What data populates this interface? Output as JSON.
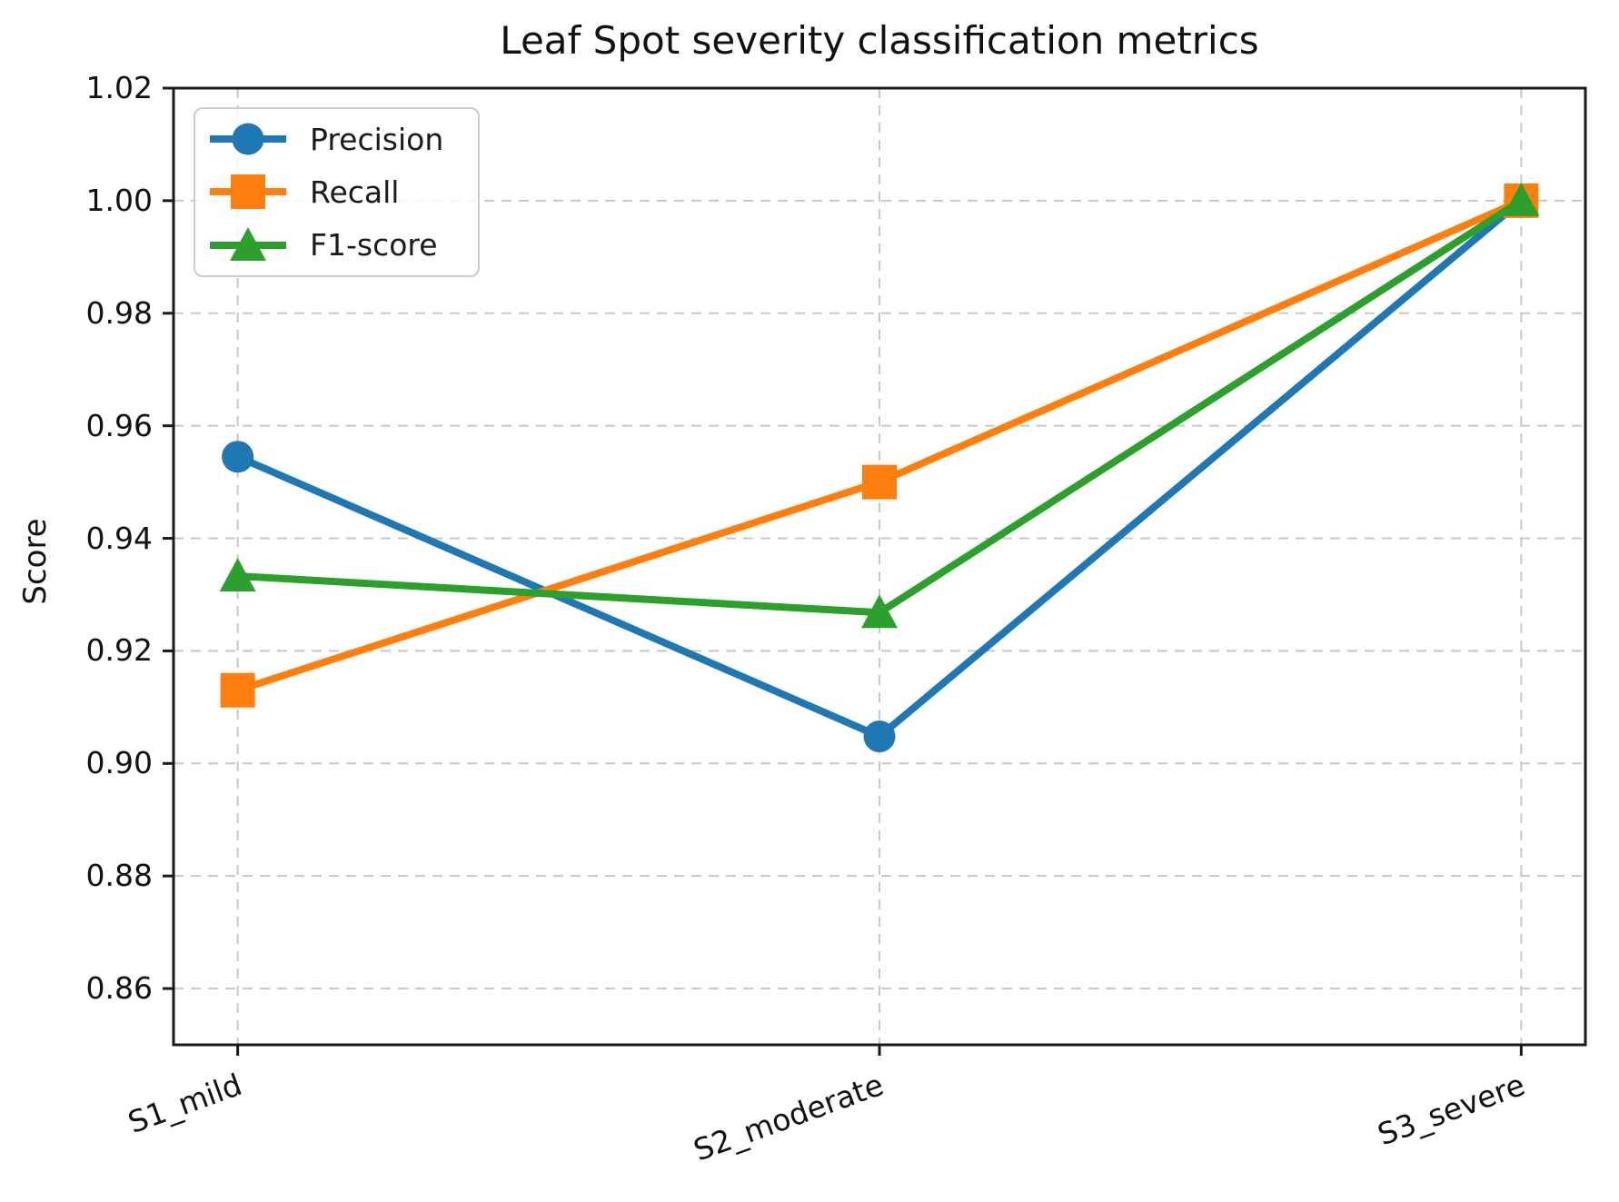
{
  "chart_data": {
    "type": "line",
    "title": "Leaf Spot severity classification metrics",
    "xlabel": "",
    "ylabel": "Score",
    "categories": [
      "S1_mild",
      "S2_moderate",
      "S3_severe"
    ],
    "series": [
      {
        "name": "Precision",
        "marker": "circle",
        "color": "#1f77b4",
        "values": [
          0.9545,
          0.9048,
          1.0
        ]
      },
      {
        "name": "Recall",
        "marker": "square",
        "color": "#ff7f0e",
        "values": [
          0.913,
          0.95,
          1.0
        ]
      },
      {
        "name": "F1-score",
        "marker": "triangle",
        "color": "#2ca02c",
        "values": [
          0.9333,
          0.9268,
          1.0
        ]
      }
    ],
    "ylim": [
      0.85,
      1.02
    ],
    "yticks": [
      0.86,
      0.88,
      0.9,
      0.92,
      0.94,
      0.96,
      0.98,
      1.0,
      1.02
    ],
    "grid": true,
    "grid_color": "#c8c8c8",
    "axis_color": "#1a1a1a",
    "legend_position": "upper left"
  }
}
